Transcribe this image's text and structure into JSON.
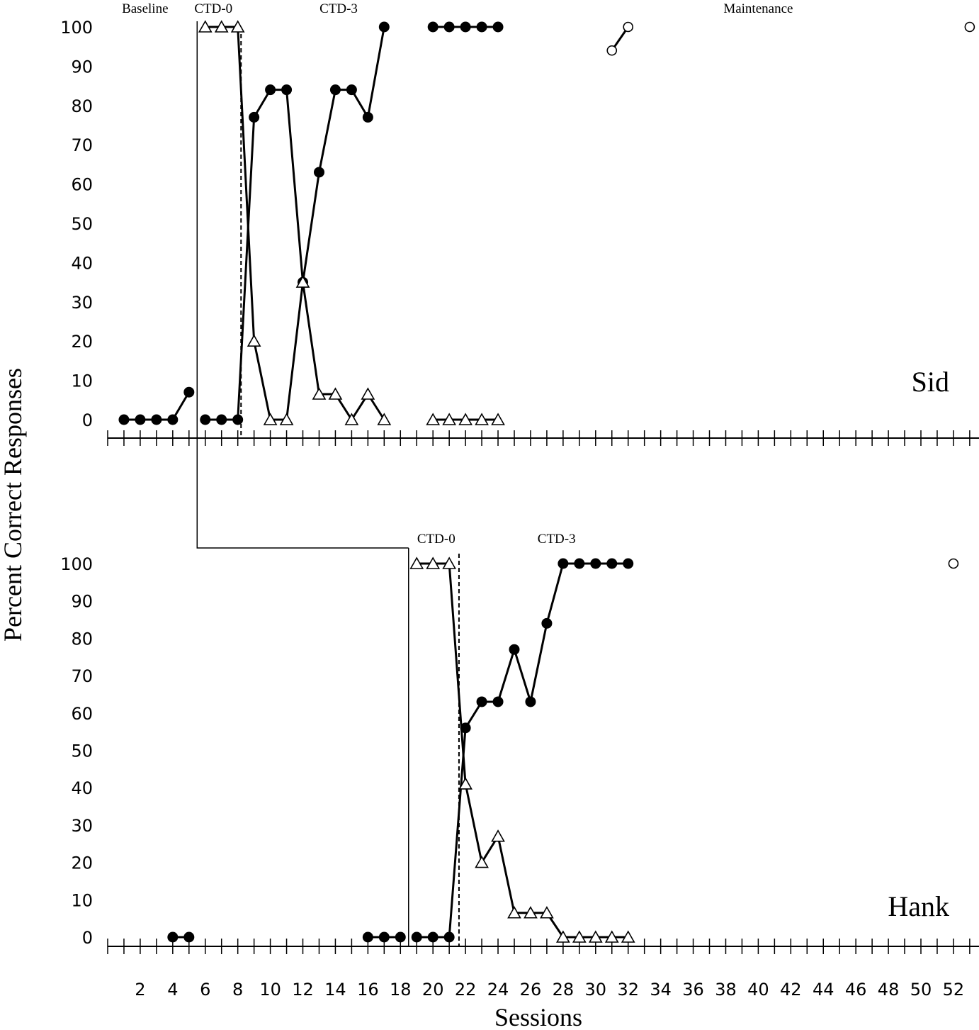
{
  "chart_data": {
    "type": "line",
    "xlabel": "Sessions",
    "ylabel": "Percent Correct Responses",
    "xlim": [
      0,
      53
    ],
    "ylim": [
      0,
      100
    ],
    "x_tick_labels": [
      "2",
      "4",
      "6",
      "8",
      "10",
      "12",
      "14",
      "16",
      "18",
      "20",
      "22",
      "24",
      "26",
      "28",
      "30",
      "32",
      "34",
      "36",
      "38",
      "40",
      "42",
      "44",
      "46",
      "48",
      "50",
      "52"
    ],
    "y_tick_labels": [
      "0",
      "10",
      "20",
      "30",
      "40",
      "50",
      "60",
      "70",
      "80",
      "90",
      "100"
    ],
    "marker_legend": {
      "filled_circle": "circle-filled",
      "open_triangle": "triangle-open",
      "open_circle": "circle-open"
    },
    "panels": [
      {
        "name": "Sid",
        "phase_labels": [
          {
            "text": "Baseline",
            "x": 2.3
          },
          {
            "text": "CTD-0",
            "x": 6.5
          },
          {
            "text": "CTD-3",
            "x": 14.2
          },
          {
            "text": "Maintenance",
            "x": 40
          }
        ],
        "phase_lines": [
          {
            "x": 5.5,
            "style": "solid"
          },
          {
            "x": 8.2,
            "style": "dashed"
          }
        ],
        "series": [
          {
            "marker": "circle-filled",
            "segments": [
              [
                [
                  1,
                  0
                ],
                [
                  2,
                  0
                ],
                [
                  3,
                  0
                ],
                [
                  4,
                  0
                ],
                [
                  5,
                  7
                ]
              ],
              [
                [
                  6,
                  0
                ],
                [
                  7,
                  0
                ],
                [
                  8,
                  0
                ],
                [
                  9,
                  77
                ],
                [
                  10,
                  84
                ],
                [
                  11,
                  84
                ],
                [
                  12,
                  35
                ],
                [
                  13,
                  63
                ],
                [
                  14,
                  84
                ],
                [
                  15,
                  84
                ],
                [
                  16,
                  77
                ],
                [
                  17,
                  100
                ]
              ],
              [
                [
                  20,
                  100
                ],
                [
                  21,
                  100
                ],
                [
                  22,
                  100
                ],
                [
                  23,
                  100
                ],
                [
                  24,
                  100
                ]
              ]
            ]
          },
          {
            "marker": "triangle-open",
            "segments": [
              [
                [
                  6,
                  100
                ],
                [
                  7,
                  100
                ],
                [
                  8,
                  100
                ],
                [
                  9,
                  20
                ],
                [
                  10,
                  0
                ],
                [
                  11,
                  0
                ],
                [
                  12,
                  35
                ],
                [
                  13,
                  6.5
                ],
                [
                  14,
                  6.5
                ],
                [
                  15,
                  0
                ],
                [
                  16,
                  6.5
                ],
                [
                  17,
                  0
                ]
              ],
              [
                [
                  20,
                  0
                ],
                [
                  21,
                  0
                ],
                [
                  22,
                  0
                ],
                [
                  23,
                  0
                ],
                [
                  24,
                  0
                ]
              ]
            ]
          },
          {
            "marker": "circle-open",
            "segments": [
              [
                [
                  31,
                  94
                ],
                [
                  32,
                  100
                ]
              ],
              [
                [
                  53,
                  100
                ]
              ]
            ]
          }
        ]
      },
      {
        "name": "Hank",
        "phase_labels": [
          {
            "text": "CTD-0",
            "x": 20.2
          },
          {
            "text": "CTD-3",
            "x": 27.6
          }
        ],
        "phase_lines": [
          {
            "x": 18.5,
            "style": "solid"
          },
          {
            "x": 21.6,
            "style": "dashed"
          }
        ],
        "series": [
          {
            "marker": "circle-filled",
            "segments": [
              [
                [
                  4,
                  0
                ],
                [
                  5,
                  0
                ]
              ],
              [
                [
                  16,
                  0
                ],
                [
                  17,
                  0
                ],
                [
                  18,
                  0
                ]
              ],
              [
                [
                  19,
                  0
                ],
                [
                  20,
                  0
                ],
                [
                  21,
                  0
                ],
                [
                  22,
                  56
                ],
                [
                  23,
                  63
                ],
                [
                  24,
                  63
                ],
                [
                  25,
                  77
                ],
                [
                  26,
                  63
                ],
                [
                  27,
                  84
                ],
                [
                  28,
                  100
                ],
                [
                  29,
                  100
                ],
                [
                  30,
                  100
                ],
                [
                  31,
                  100
                ],
                [
                  32,
                  100
                ]
              ]
            ]
          },
          {
            "marker": "triangle-open",
            "segments": [
              [
                [
                  19,
                  100
                ],
                [
                  20,
                  100
                ],
                [
                  21,
                  100
                ],
                [
                  22,
                  41
                ],
                [
                  23,
                  20
                ],
                [
                  24,
                  27
                ],
                [
                  25,
                  6.5
                ],
                [
                  26,
                  6.5
                ],
                [
                  27,
                  6.5
                ],
                [
                  28,
                  0
                ],
                [
                  29,
                  0
                ],
                [
                  30,
                  0
                ],
                [
                  31,
                  0
                ],
                [
                  32,
                  0
                ]
              ]
            ]
          },
          {
            "marker": "circle-open",
            "segments": [
              [
                [
                  52,
                  100
                ]
              ]
            ]
          }
        ]
      }
    ]
  }
}
